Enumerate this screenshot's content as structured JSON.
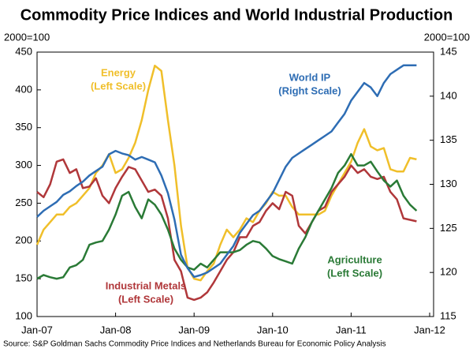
{
  "chart_data": {
    "type": "line",
    "title": "Commodity Price Indices and World Industrial Production",
    "y_unit_label": "2000=100",
    "y2_unit_label": "2000=100",
    "source": "Source: S&P Goldman Sachs Commodity Price Indices and Netherlands Bureau for Economic Policy Analysis",
    "categories": [
      "Jan-07",
      null,
      null,
      null,
      null,
      null,
      null,
      null,
      null,
      null,
      null,
      null,
      "Jan-08",
      null,
      null,
      null,
      null,
      null,
      null,
      null,
      null,
      null,
      null,
      null,
      "Jan-09",
      null,
      null,
      null,
      null,
      null,
      null,
      null,
      null,
      null,
      null,
      null,
      "Jan-10",
      null,
      null,
      null,
      null,
      null,
      null,
      null,
      null,
      null,
      null,
      null,
      "Jan-11",
      null,
      null,
      null,
      null,
      null,
      null,
      null,
      null,
      null,
      null,
      null,
      "Jan-12"
    ],
    "ylim": [
      100,
      450
    ],
    "yticks": [
      100,
      150,
      200,
      250,
      300,
      350,
      400,
      450
    ],
    "y2lim": [
      115,
      145
    ],
    "y2ticks": [
      115,
      120,
      125,
      130,
      135,
      140,
      145
    ],
    "series": [
      {
        "name": "Energy",
        "scale_label": "(Left Scale)",
        "color": "#f0bf2a",
        "values": [
          195,
          215,
          225,
          235,
          235,
          245,
          250,
          260,
          270,
          290,
          300,
          315,
          290,
          295,
          310,
          330,
          360,
          400,
          432,
          425,
          360,
          300,
          220,
          165,
          150,
          148,
          160,
          170,
          195,
          215,
          205,
          215,
          230,
          225,
          240,
          250,
          265,
          260,
          260,
          245,
          235,
          235,
          235,
          235,
          240,
          260,
          275,
          290,
          305,
          330,
          348,
          325,
          320,
          323,
          295,
          292,
          292,
          310,
          308,
          null,
          null
        ]
      },
      {
        "name": "Industrial Metals",
        "scale_label": "(Left Scale)",
        "color": "#b0373a",
        "values": [
          265,
          258,
          275,
          305,
          308,
          290,
          295,
          270,
          272,
          283,
          260,
          250,
          270,
          285,
          298,
          295,
          280,
          265,
          268,
          260,
          230,
          175,
          160,
          125,
          122,
          125,
          132,
          145,
          160,
          175,
          185,
          205,
          205,
          220,
          225,
          240,
          250,
          242,
          265,
          260,
          220,
          210,
          225,
          240,
          245,
          265,
          275,
          285,
          300,
          290,
          295,
          285,
          282,
          285,
          265,
          255,
          230,
          228,
          226,
          null,
          null
        ]
      },
      {
        "name": "Agriculture",
        "scale_label": "(Left Scale)",
        "color": "#2a7a36",
        "values": [
          150,
          155,
          152,
          150,
          152,
          165,
          168,
          175,
          195,
          198,
          200,
          215,
          235,
          260,
          265,
          245,
          230,
          255,
          248,
          235,
          215,
          190,
          175,
          165,
          162,
          170,
          165,
          175,
          185,
          185,
          185,
          188,
          195,
          200,
          198,
          190,
          180,
          176,
          173,
          170,
          190,
          205,
          225,
          240,
          255,
          270,
          290,
          300,
          315,
          300,
          300,
          305,
          292,
          280,
          272,
          280,
          260,
          248,
          240,
          null,
          null
        ]
      },
      {
        "name": "World IP",
        "scale_label": "(Right Scale)",
        "color": "#2e6db4",
        "axis": "y2",
        "values": [
          126.3,
          127,
          127.5,
          128,
          128.8,
          129.2,
          129.8,
          130.3,
          131,
          131.5,
          132,
          133.4,
          133.8,
          133.5,
          133.3,
          132.8,
          133.1,
          132.8,
          132.5,
          131,
          129,
          126,
          122,
          120.5,
          119.5,
          119.7,
          120,
          120.5,
          121,
          122,
          123,
          124.5,
          125.5,
          126.5,
          127,
          128,
          129,
          130.5,
          132,
          133,
          133.5,
          134,
          134.5,
          135,
          135.5,
          136,
          137,
          138,
          139.5,
          140.5,
          141.5,
          141,
          140,
          141.5,
          142.5,
          143,
          143.5,
          143.5,
          143.5,
          null,
          null
        ]
      }
    ]
  }
}
